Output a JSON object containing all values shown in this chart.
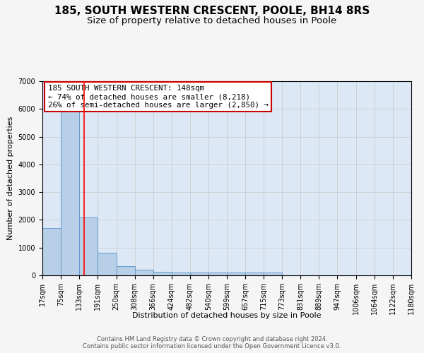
{
  "title1": "185, SOUTH WESTERN CRESCENT, POOLE, BH14 8RS",
  "title2": "Size of property relative to detached houses in Poole",
  "xlabel": "Distribution of detached houses by size in Poole",
  "ylabel": "Number of detached properties",
  "bin_edges": [
    17,
    75,
    133,
    191,
    250,
    308,
    366,
    424,
    482,
    540,
    599,
    657,
    715,
    773,
    831,
    889,
    947,
    1006,
    1064,
    1122,
    1180
  ],
  "bar_heights": [
    1700,
    6050,
    2100,
    820,
    340,
    200,
    130,
    100,
    100,
    95,
    95,
    95,
    95,
    0,
    0,
    0,
    0,
    0,
    0,
    0
  ],
  "bar_color": "#b8cfe8",
  "bar_edge_color": "#6699cc",
  "grid_color": "#cccccc",
  "background_color": "#dce8f5",
  "red_line_x": 148,
  "annotation_text": "185 SOUTH WESTERN CRESCENT: 148sqm\n← 74% of detached houses are smaller (8,218)\n26% of semi-detached houses are larger (2,850) →",
  "annotation_box_color": "#ffffff",
  "annotation_box_edge": "#cc0000",
  "footnote": "Contains HM Land Registry data © Crown copyright and database right 2024.\nContains public sector information licensed under the Open Government Licence v3.0.",
  "ylim": [
    0,
    7000
  ],
  "title1_fontsize": 11,
  "title2_fontsize": 9.5,
  "axis_label_fontsize": 8,
  "tick_fontsize": 7,
  "annotation_fontsize": 7.8,
  "footnote_fontsize": 6
}
